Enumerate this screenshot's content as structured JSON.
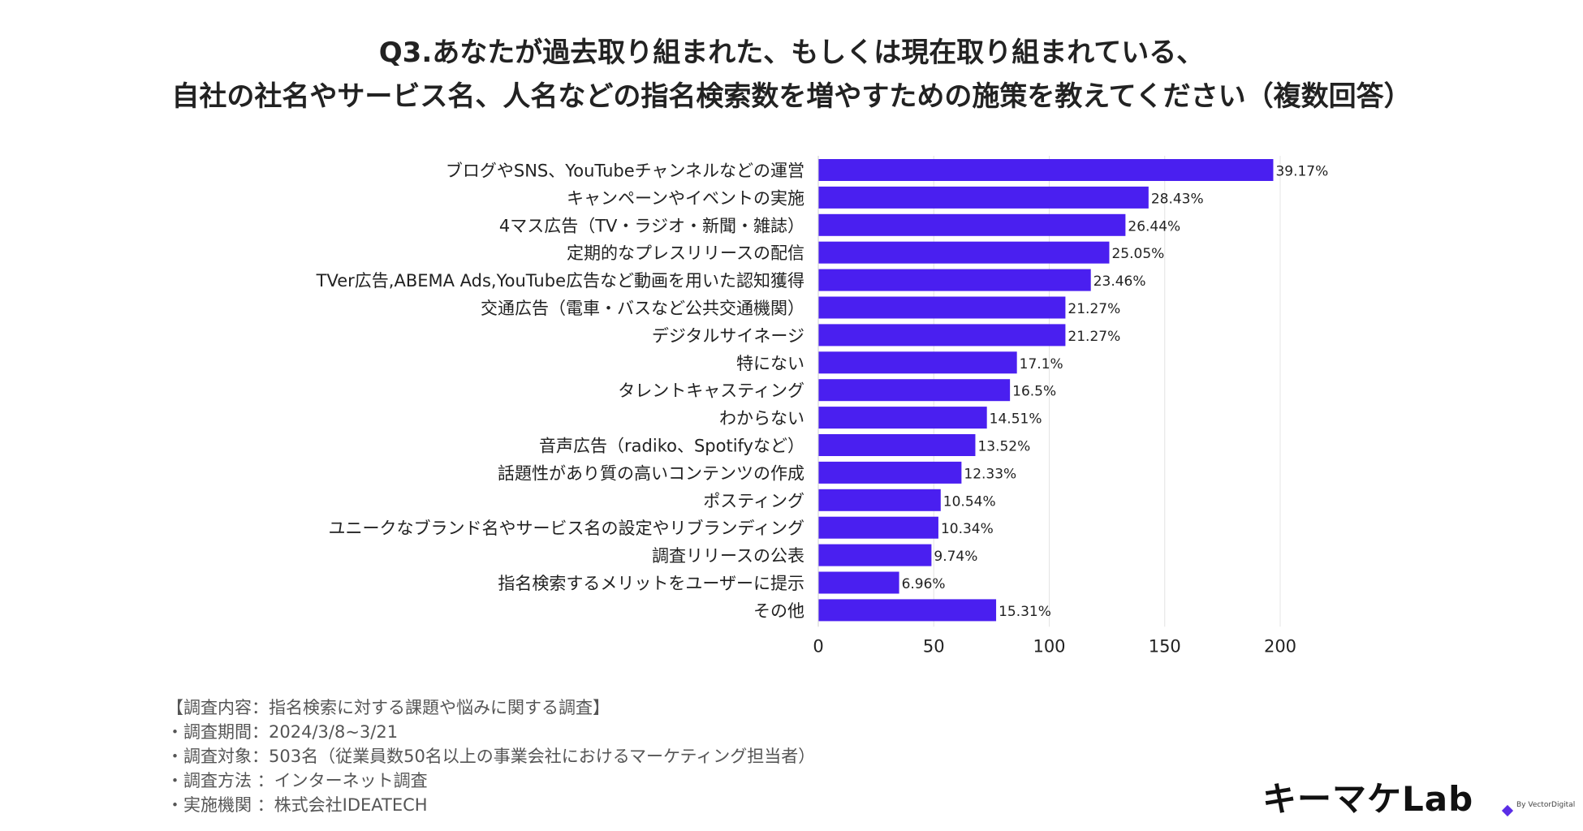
{
  "title": {
    "line1": "Q3.あなたが過去取り組まれた、もしくは現在取り組まれている、",
    "line2": "自社の社名やサービス名、人名などの指名検索数を増やすための施策を教えてください（複数回答）"
  },
  "chart_data": {
    "type": "bar",
    "orientation": "horizontal",
    "categories": [
      "ブログやSNS、YouTubeチャンネルなどの運営",
      "キャンペーンやイベントの実施",
      "4マス広告（TV・ラジオ・新聞・雑誌）",
      "定期的なプレスリリースの配信",
      "TVer広告,ABEMA Ads,YouTube広告など動画を用いた認知獲得",
      "交通広告（電車・バスなど公共交通機関）",
      "デジタルサイネージ",
      "特にない",
      "タレントキャスティング",
      "わからない",
      "音声広告（radiko、Spotifyなど）",
      "話題性があり質の高いコンテンツの作成",
      "ポスティング",
      "ユニークなブランド名やサービス名の設定やリブランディング",
      "調査リリースの公表",
      "指名検索するメリットをユーザーに提示",
      "その他"
    ],
    "values": [
      197,
      143,
      133,
      126,
      118,
      107,
      107,
      86,
      83,
      73,
      68,
      62,
      53,
      52,
      49,
      35,
      77
    ],
    "data_labels": [
      "39.17%",
      "28.43%",
      "26.44%",
      "25.05%",
      "23.46%",
      "21.27%",
      "21.27%",
      "17.1%",
      "16.5%",
      "14.51%",
      "13.52%",
      "12.33%",
      "10.54%",
      "10.34%",
      "9.74%",
      "6.96%",
      "15.31%"
    ],
    "xlim": [
      0,
      200
    ],
    "xticks": [
      0,
      50,
      100,
      150,
      200
    ],
    "xtick_labels": [
      "0",
      "50",
      "100",
      "150",
      "200"
    ],
    "grid": true,
    "bar_color": "#4a1ff0"
  },
  "footer": {
    "line1": "【調査内容：指名検索に対する課題や悩みに関する調査】",
    "line2": "・調査期間：2024/3/8~3/21",
    "line3": "・調査対象：503名（従業員数50名以上の事業会社におけるマーケティング担当者）",
    "line4": "・調査方法 ：インターネット調査",
    "line5": "・実施機関 ：株式会社IDEATECH"
  },
  "logo": {
    "text": "キーマケLab",
    "sub": "By VectorDigital",
    "accent": "#5a2de6"
  }
}
